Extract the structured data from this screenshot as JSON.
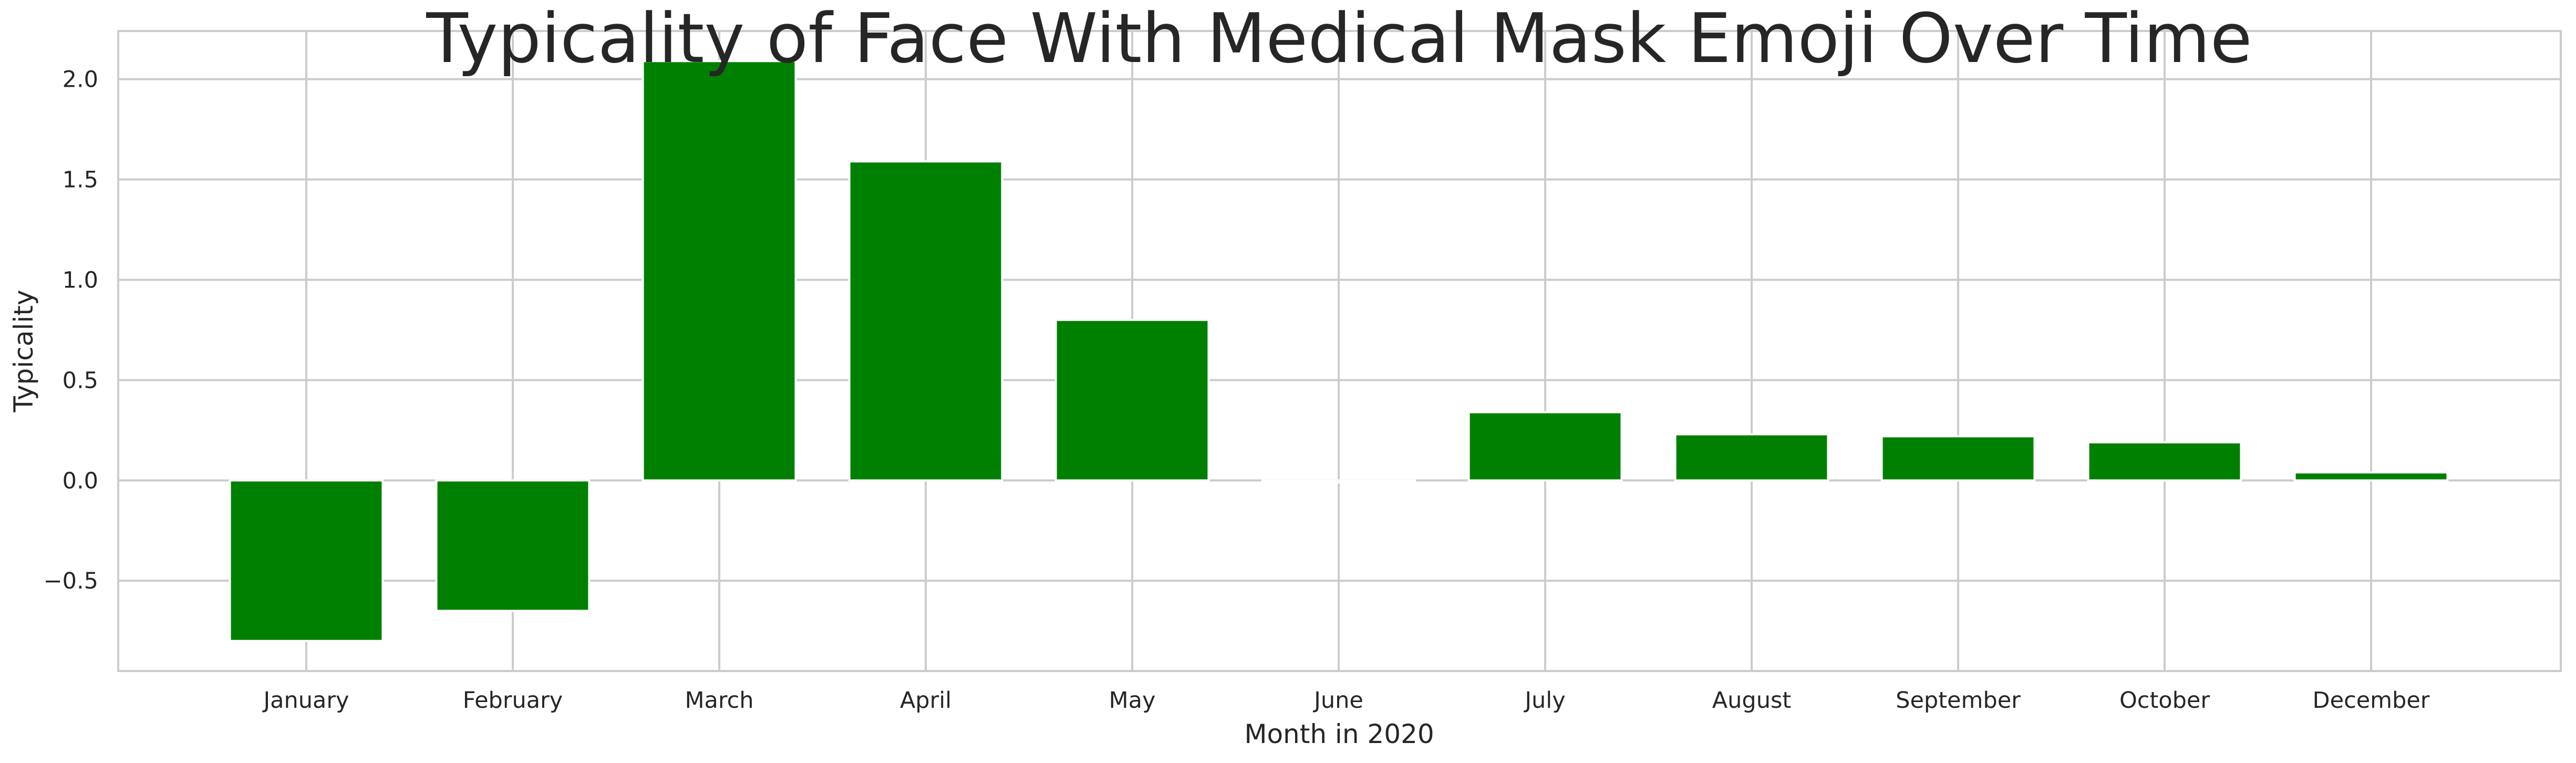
{
  "chart_data": {
    "type": "bar",
    "title": "Typicality of Face With Medical Mask Emoji Over Time",
    "xlabel": "Month in 2020",
    "ylabel": "Typicality",
    "categories": [
      "January",
      "February",
      "March",
      "April",
      "May",
      "June",
      "July",
      "August",
      "September",
      "October",
      "December"
    ],
    "values": [
      -0.8,
      -0.65,
      2.09,
      1.59,
      0.8,
      -0.01,
      0.34,
      0.23,
      0.22,
      0.19,
      0.04
    ],
    "ylim": [
      -0.95,
      2.24
    ],
    "yticks": [
      -0.5,
      0.0,
      0.5,
      1.0,
      1.5,
      2.0
    ],
    "ytick_labels": [
      "−0.5",
      "0.0",
      "0.5",
      "1.0",
      "1.5",
      "2.0"
    ],
    "grid": true,
    "bar_color": "#008000",
    "grid_color": "#cccccc",
    "frame_color": "#cccccc",
    "text_color": "#262626"
  }
}
